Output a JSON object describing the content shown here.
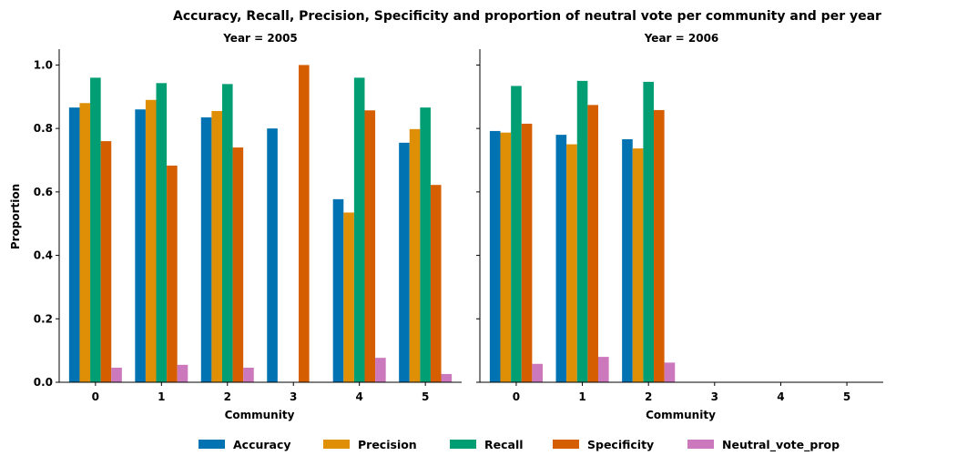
{
  "chart_data": {
    "type": "bar",
    "title": "Accuracy, Recall, Precision, Specificity and proportion of neutral vote per community and per year",
    "ylabel": "Proportion",
    "xlabel": "Community",
    "ylim": [
      0,
      1.05
    ],
    "yticks": [
      0.0,
      0.2,
      0.4,
      0.6,
      0.8,
      1.0
    ],
    "ytick_labels": [
      "0.0",
      "0.2",
      "0.4",
      "0.6",
      "0.8",
      "1.0"
    ],
    "categories": [
      "0",
      "1",
      "2",
      "3",
      "4",
      "5"
    ],
    "legend_position": "bottom-center",
    "grid": false,
    "series_meta": [
      {
        "name": "Accuracy",
        "color": "#0173b2"
      },
      {
        "name": "Precision",
        "color": "#de8f05"
      },
      {
        "name": "Recall",
        "color": "#029e73"
      },
      {
        "name": "Specificity",
        "color": "#d55e00"
      },
      {
        "name": "Neutral_vote_prop",
        "color": "#cc78bc"
      }
    ],
    "panels": [
      {
        "title": "Year = 2005",
        "series": [
          {
            "name": "Accuracy",
            "values": [
              0.866,
              0.86,
              0.835,
              0.8,
              0.577,
              0.755
            ]
          },
          {
            "name": "Precision",
            "values": [
              0.88,
              0.89,
              0.855,
              null,
              0.535,
              0.798
            ]
          },
          {
            "name": "Recall",
            "values": [
              0.96,
              0.943,
              0.94,
              null,
              0.96,
              0.866
            ]
          },
          {
            "name": "Specificity",
            "values": [
              0.76,
              0.683,
              0.74,
              1.0,
              0.857,
              0.622
            ]
          },
          {
            "name": "Neutral_vote_prop",
            "values": [
              0.046,
              0.055,
              0.046,
              null,
              0.077,
              0.026
            ]
          }
        ]
      },
      {
        "title": "Year = 2006",
        "series": [
          {
            "name": "Accuracy",
            "values": [
              0.792,
              0.78,
              0.766,
              null,
              null,
              null
            ]
          },
          {
            "name": "Precision",
            "values": [
              0.787,
              0.75,
              0.737,
              null,
              null,
              null
            ]
          },
          {
            "name": "Recall",
            "values": [
              0.934,
              0.95,
              0.947,
              null,
              null,
              null
            ]
          },
          {
            "name": "Specificity",
            "values": [
              0.815,
              0.874,
              0.858,
              null,
              null,
              null
            ]
          },
          {
            "name": "Neutral_vote_prop",
            "values": [
              0.058,
              0.08,
              0.062,
              null,
              null,
              null
            ]
          }
        ]
      }
    ]
  }
}
